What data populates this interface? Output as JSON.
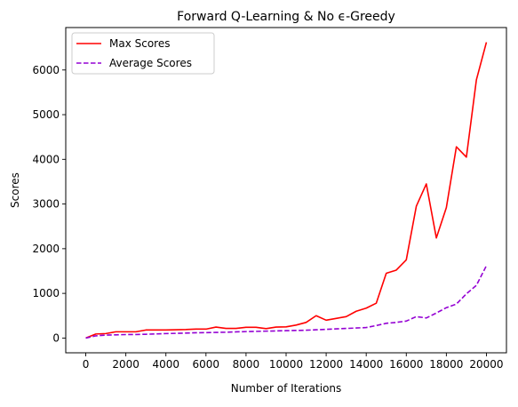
{
  "chart_data": {
    "type": "line",
    "title": "Forward Q-Learning & No ϵ-Greedy",
    "xlabel": "Number of Iterations",
    "ylabel": "Scores",
    "xlim": [
      -1000,
      21000
    ],
    "ylim": [
      -330,
      6950
    ],
    "x_ticks": [
      0,
      2000,
      4000,
      6000,
      8000,
      10000,
      12000,
      14000,
      16000,
      18000,
      20000
    ],
    "y_ticks": [
      0,
      1000,
      2000,
      3000,
      4000,
      5000,
      6000
    ],
    "grid": false,
    "legend_position": "top-left",
    "series": [
      {
        "name": "Max Scores",
        "color": "#ff0000",
        "dash": "solid",
        "x": [
          0,
          500,
          1000,
          1500,
          2000,
          2500,
          3000,
          3500,
          4000,
          4500,
          5000,
          5500,
          6000,
          6500,
          7000,
          7500,
          8000,
          8500,
          9000,
          9500,
          10000,
          10500,
          11000,
          11500,
          12000,
          12500,
          13000,
          13500,
          14000,
          14500,
          15000,
          15500,
          16000,
          16500,
          17000,
          17500,
          18000,
          18500,
          19000,
          19500,
          20000
        ],
        "values": [
          0,
          90,
          100,
          140,
          140,
          140,
          180,
          180,
          180,
          185,
          190,
          200,
          200,
          245,
          215,
          215,
          240,
          240,
          210,
          245,
          250,
          290,
          350,
          500,
          400,
          440,
          480,
          600,
          670,
          780,
          1450,
          1520,
          1750,
          2950,
          3450,
          2240,
          2920,
          4280,
          4050,
          5780,
          6620
        ]
      },
      {
        "name": "Average Scores",
        "color": "#9400d3",
        "dash": "dashed",
        "x": [
          0,
          500,
          1000,
          1500,
          2000,
          2500,
          3000,
          3500,
          4000,
          4500,
          5000,
          5500,
          6000,
          6500,
          7000,
          7500,
          8000,
          8500,
          9000,
          9500,
          10000,
          10500,
          11000,
          11500,
          12000,
          12500,
          13000,
          13500,
          14000,
          14500,
          15000,
          15500,
          16000,
          16500,
          17000,
          17500,
          18000,
          18500,
          19000,
          19500,
          20000
        ],
        "values": [
          0,
          50,
          65,
          72,
          78,
          80,
          85,
          92,
          100,
          105,
          112,
          118,
          122,
          126,
          130,
          138,
          145,
          150,
          155,
          160,
          165,
          170,
          175,
          185,
          195,
          205,
          215,
          225,
          235,
          280,
          330,
          350,
          380,
          480,
          450,
          560,
          680,
          760,
          990,
          1180,
          1620
        ]
      }
    ]
  }
}
